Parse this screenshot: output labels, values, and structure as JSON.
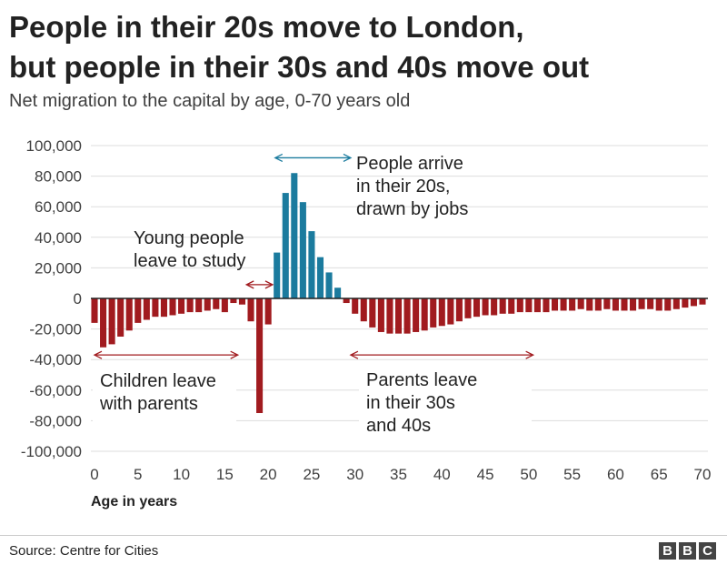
{
  "header": {
    "title_line1": "People in their 20s move to London,",
    "title_line2": "but people in their 30s and 40s move out",
    "subtitle": "Net migration to the capital by age, 0-70 years old"
  },
  "footer": {
    "source": "Source: Centre for Cities",
    "logo": [
      "B",
      "B",
      "C"
    ]
  },
  "colors": {
    "positive": "#1b7b9e",
    "negative": "#a11b1f",
    "text": "#222222",
    "grid": "#dddddd"
  },
  "chart_data": {
    "type": "bar",
    "xlabel": "Age in years",
    "ylabel": "",
    "xlim": [
      0,
      70
    ],
    "ylim": [
      -100000,
      100000
    ],
    "grid": true,
    "x_ticks": [
      0,
      5,
      10,
      15,
      20,
      25,
      30,
      35,
      40,
      45,
      50,
      55,
      60,
      65,
      70
    ],
    "y_ticks": [
      {
        "value": 100000,
        "label": "100,000"
      },
      {
        "value": 80000,
        "label": "80,000"
      },
      {
        "value": 60000,
        "label": "60,000"
      },
      {
        "value": 40000,
        "label": "40,000"
      },
      {
        "value": 20000,
        "label": "20,000"
      },
      {
        "value": 0,
        "label": "0"
      },
      {
        "value": -20000,
        "label": "-20,000"
      },
      {
        "value": -40000,
        "label": "-40,000"
      },
      {
        "value": -60000,
        "label": "-60,000"
      },
      {
        "value": -80000,
        "label": "-80,000"
      },
      {
        "value": -100000,
        "label": "-100,000"
      }
    ],
    "x": [
      0,
      1,
      2,
      3,
      4,
      5,
      6,
      7,
      8,
      9,
      10,
      11,
      12,
      13,
      14,
      15,
      16,
      17,
      18,
      19,
      20,
      21,
      22,
      23,
      24,
      25,
      26,
      27,
      28,
      29,
      30,
      31,
      32,
      33,
      34,
      35,
      36,
      37,
      38,
      39,
      40,
      41,
      42,
      43,
      44,
      45,
      46,
      47,
      48,
      49,
      50,
      51,
      52,
      53,
      54,
      55,
      56,
      57,
      58,
      59,
      60,
      61,
      62,
      63,
      64,
      65,
      66,
      67,
      68,
      69,
      70
    ],
    "values": [
      -16000,
      -32000,
      -30000,
      -25000,
      -21000,
      -16000,
      -14000,
      -12000,
      -12000,
      -11000,
      -10000,
      -9000,
      -9000,
      -8000,
      -7000,
      -9000,
      -3000,
      -4000,
      -15000,
      -75000,
      -17000,
      30000,
      69000,
      82000,
      63000,
      44000,
      27000,
      17000,
      7000,
      -3000,
      -10000,
      -15000,
      -19000,
      -22000,
      -23000,
      -23000,
      -23000,
      -22000,
      -21000,
      -19000,
      -18000,
      -17000,
      -15000,
      -13000,
      -12000,
      -11000,
      -11000,
      -10000,
      -10000,
      -9000,
      -9000,
      -9000,
      -9000,
      -8000,
      -8000,
      -8000,
      -7000,
      -8000,
      -8000,
      -7000,
      -8000,
      -8000,
      -8000,
      -7000,
      -7000,
      -8000,
      -8000,
      -7000,
      -6000,
      -5000,
      -4000
    ],
    "annotations": [
      {
        "id": "arrive",
        "lines": [
          "People arrive",
          "in their 20s,",
          "drawn by jobs"
        ],
        "arrow_from": 20.8,
        "arrow_to": 29.5,
        "arrow_y": 92000,
        "color": "#1b7b9e"
      },
      {
        "id": "study",
        "lines": [
          "Young people",
          "leave to study"
        ],
        "arrow_from": 17.5,
        "arrow_to": 20.5,
        "arrow_y": 9000,
        "color": "#a11b1f"
      },
      {
        "id": "children",
        "lines": [
          "Children leave",
          "with parents"
        ],
        "arrow_from": 0,
        "arrow_to": 16.5,
        "arrow_y": -37000,
        "color": "#a11b1f"
      },
      {
        "id": "parents",
        "lines": [
          "Parents leave",
          "in their 30s",
          "and 40s"
        ],
        "arrow_from": 29.5,
        "arrow_to": 50.5,
        "arrow_y": -37000,
        "color": "#a11b1f"
      }
    ]
  }
}
